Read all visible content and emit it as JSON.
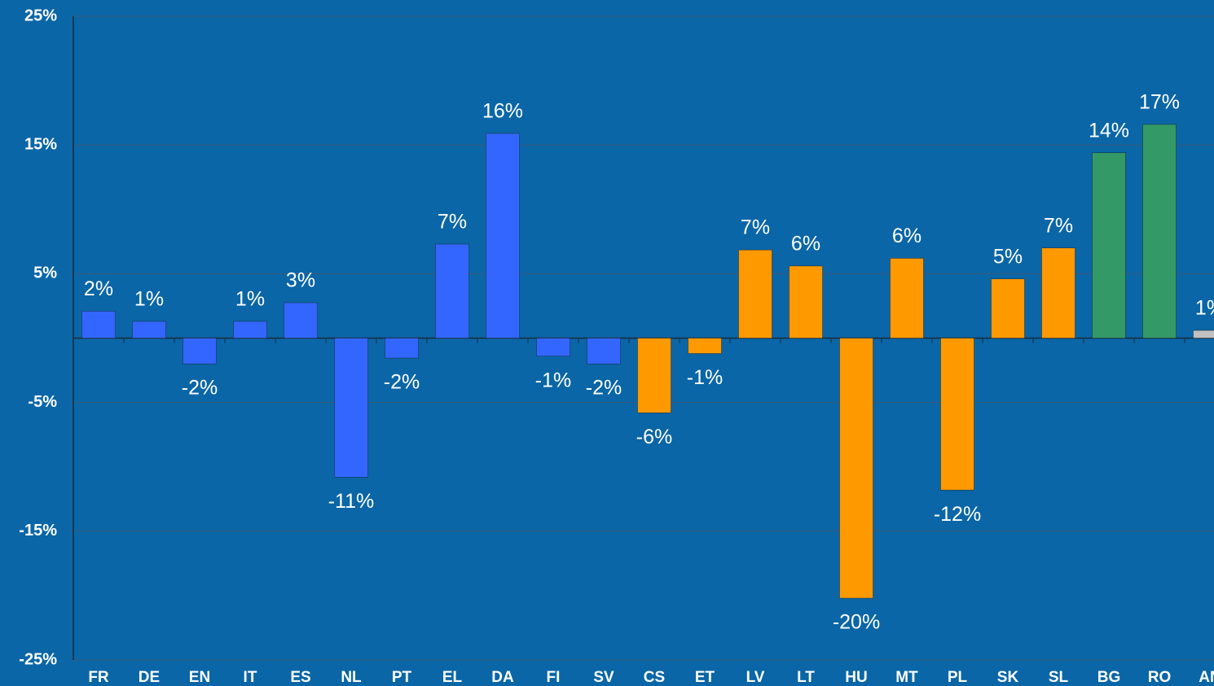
{
  "chart_data": {
    "type": "bar",
    "categories": [
      "FR",
      "DE",
      "EN",
      "IT",
      "ES",
      "NL",
      "PT",
      "EL",
      "DA",
      "FI",
      "SV",
      "CS",
      "ET",
      "LV",
      "LT",
      "HU",
      "MT",
      "PL",
      "SK",
      "SL",
      "BG",
      "RO",
      "AN"
    ],
    "values": [
      2.1,
      1.3,
      -2.0,
      1.3,
      2.75,
      -10.8,
      -1.55,
      7.3,
      15.9,
      -1.4,
      -2.0,
      -5.8,
      -1.2,
      6.85,
      5.6,
      -20.2,
      6.2,
      -11.8,
      4.6,
      7.0,
      14.4,
      16.6,
      0.6
    ],
    "value_labels": [
      "2%",
      "1%",
      "-2%",
      "1%",
      "3%",
      "-11%",
      "-2%",
      "7%",
      "16%",
      "-1%",
      "-2%",
      "-6%",
      "-1%",
      "7%",
      "6%",
      "-20%",
      "6%",
      "-12%",
      "5%",
      "7%",
      "14%",
      "17%",
      "1%"
    ],
    "colors": [
      "#3366ff",
      "#3366ff",
      "#3366ff",
      "#3366ff",
      "#3366ff",
      "#3366ff",
      "#3366ff",
      "#3366ff",
      "#3366ff",
      "#3366ff",
      "#3366ff",
      "#ff9900",
      "#ff9900",
      "#ff9900",
      "#ff9900",
      "#ff9900",
      "#ff9900",
      "#ff9900",
      "#ff9900",
      "#ff9900",
      "#339966",
      "#339966",
      "#c0c0c0"
    ],
    "ylim": [
      -25,
      25
    ],
    "yticks": [
      {
        "value": -25,
        "label": "-25%"
      },
      {
        "value": -15,
        "label": "-15%"
      },
      {
        "value": -5,
        "label": "-5%"
      },
      {
        "value": 5,
        "label": "5%"
      },
      {
        "value": 15,
        "label": "15%"
      },
      {
        "value": 25,
        "label": "25%"
      }
    ],
    "grid": true
  }
}
